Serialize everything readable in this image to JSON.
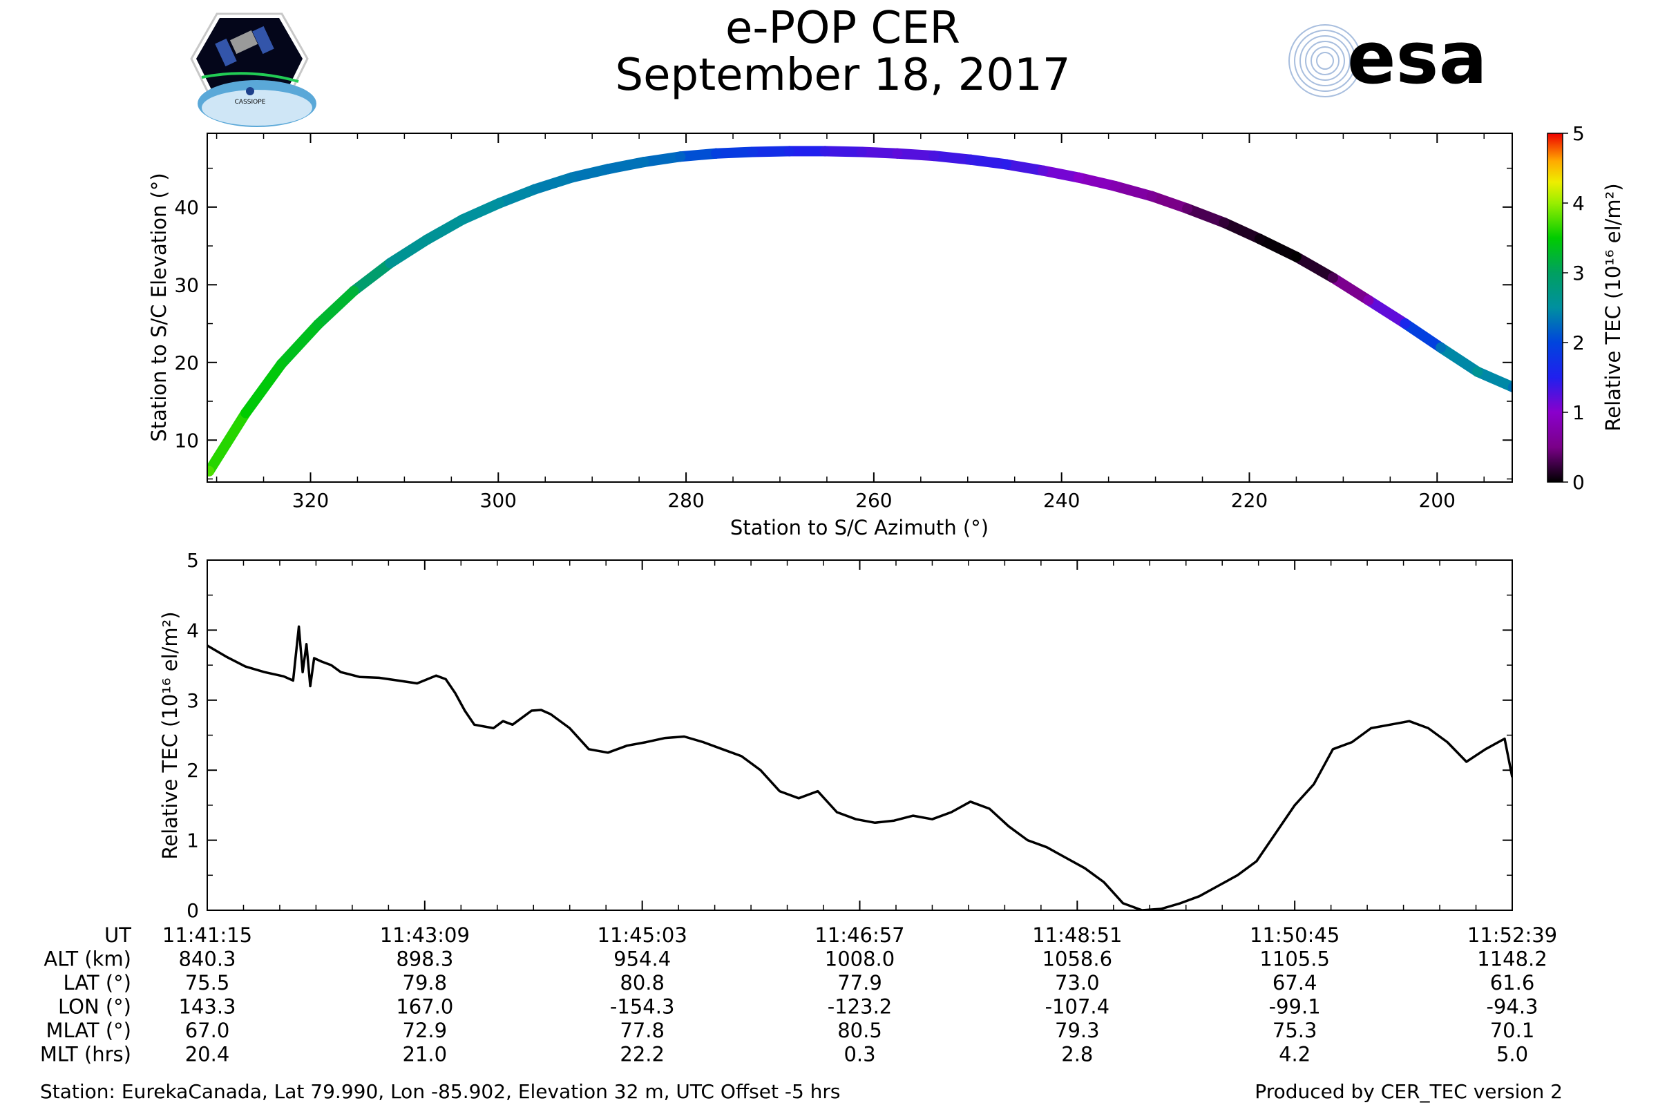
{
  "header": {
    "title": "e-POP CER",
    "date": "September 18, 2017",
    "logo_left_text": "CASSIOPE",
    "logo_right_text": "esa"
  },
  "colors": {
    "axis": "#000000",
    "trace": "#000000",
    "esa_blue": "#003399"
  },
  "chart_data": [
    {
      "type": "scatter",
      "title": "",
      "xlabel": "Station to S/C Azimuth (°)",
      "ylabel": "Station to S/C Elevation (°)",
      "xlim": [
        331,
        192
      ],
      "ylim": [
        4.6,
        49.5
      ],
      "xticks": [
        320,
        300,
        280,
        260,
        240,
        220,
        200
      ],
      "yticks": [
        10,
        20,
        30,
        40
      ],
      "x": [
        330.8,
        326.9,
        323.1,
        319.2,
        315.4,
        311.5,
        307.6,
        303.8,
        299.9,
        296.1,
        292.2,
        288.3,
        284.5,
        280.6,
        276.8,
        272.9,
        269.0,
        265.2,
        261.3,
        257.5,
        253.6,
        249.7,
        245.9,
        242.0,
        238.2,
        234.3,
        230.4,
        226.6,
        222.7,
        218.9,
        215.0,
        211.1,
        207.3,
        203.4,
        199.6,
        195.7,
        191.9
      ],
      "y": [
        6.0,
        13.5,
        19.8,
        24.9,
        29.2,
        32.8,
        35.8,
        38.4,
        40.5,
        42.3,
        43.8,
        44.9,
        45.8,
        46.5,
        46.9,
        47.1,
        47.2,
        47.2,
        47.1,
        46.9,
        46.6,
        46.1,
        45.5,
        44.7,
        43.8,
        42.7,
        41.4,
        39.8,
        38.0,
        35.9,
        33.6,
        30.9,
        28.0,
        25.0,
        21.9,
        18.8,
        16.8
      ],
      "color_values": [
        3.75,
        3.5,
        3.4,
        3.3,
        3.2,
        2.6,
        2.6,
        2.55,
        2.5,
        2.4,
        2.35,
        2.3,
        2.3,
        2.2,
        1.95,
        1.8,
        1.6,
        1.4,
        1.3,
        1.2,
        1.3,
        1.4,
        1.45,
        1.2,
        1.0,
        0.8,
        0.6,
        0.4,
        0.2,
        0.05,
        0.0,
        0.3,
        0.8,
        1.6,
        2.3,
        2.6,
        2.3
      ],
      "colorbar": {
        "label": "Relative TEC (10¹⁶ el/m²)",
        "range": [
          0,
          5
        ],
        "ticks": [
          0,
          1,
          2,
          3,
          4,
          5
        ],
        "colormap": "nipy_spectral"
      }
    },
    {
      "type": "line",
      "title": "",
      "xlabel": "",
      "ylabel": "Relative TEC (10¹⁶ el/m²)",
      "x_unit": "seconds since 11:41:15 UT",
      "xlim": [
        0,
        684
      ],
      "ylim": [
        0,
        5
      ],
      "yticks": [
        0,
        1,
        2,
        3,
        4,
        5
      ],
      "x": [
        0,
        10,
        20,
        30,
        40,
        45,
        48,
        50,
        52,
        54,
        56,
        60,
        65,
        70,
        80,
        90,
        100,
        110,
        120,
        125,
        130,
        135,
        140,
        150,
        155,
        160,
        170,
        175,
        180,
        190,
        200,
        210,
        220,
        230,
        240,
        250,
        260,
        270,
        280,
        290,
        300,
        310,
        320,
        330,
        340,
        350,
        360,
        370,
        380,
        390,
        400,
        410,
        420,
        430,
        440,
        450,
        460,
        470,
        480,
        490,
        500,
        510,
        520,
        530,
        540,
        550,
        560,
        570,
        580,
        590,
        600,
        610,
        620,
        630,
        640,
        650,
        660,
        670,
        680,
        684
      ],
      "y": [
        3.78,
        3.62,
        3.48,
        3.4,
        3.34,
        3.28,
        4.05,
        3.4,
        3.8,
        3.2,
        3.6,
        3.55,
        3.5,
        3.4,
        3.33,
        3.32,
        3.28,
        3.24,
        3.35,
        3.3,
        3.1,
        2.85,
        2.65,
        2.6,
        2.7,
        2.65,
        2.85,
        2.86,
        2.8,
        2.6,
        2.3,
        2.25,
        2.35,
        2.4,
        2.46,
        2.48,
        2.4,
        2.3,
        2.2,
        2.0,
        1.7,
        1.6,
        1.7,
        1.4,
        1.3,
        1.25,
        1.28,
        1.35,
        1.3,
        1.4,
        1.55,
        1.45,
        1.2,
        1.0,
        0.9,
        0.75,
        0.6,
        0.4,
        0.1,
        0.0,
        0.02,
        0.1,
        0.2,
        0.35,
        0.5,
        0.7,
        1.1,
        1.5,
        1.8,
        2.3,
        2.4,
        2.6,
        2.65,
        2.7,
        2.6,
        2.4,
        2.12,
        2.3,
        2.45,
        1.9
      ]
    }
  ],
  "table": {
    "rows": [
      {
        "label": "UT",
        "values": [
          "11:41:15",
          "11:43:09",
          "11:45:03",
          "11:46:57",
          "11:48:51",
          "11:50:45",
          "11:52:39"
        ]
      },
      {
        "label": "ALT (km)",
        "values": [
          "840.3",
          "898.3",
          "954.4",
          "1008.0",
          "1058.6",
          "1105.5",
          "1148.2"
        ]
      },
      {
        "label": "LAT (°)",
        "values": [
          "75.5",
          "79.8",
          "80.8",
          "77.9",
          "73.0",
          "67.4",
          "61.6"
        ]
      },
      {
        "label": "LON (°)",
        "values": [
          "143.3",
          "167.0",
          "-154.3",
          "-123.2",
          "-107.4",
          "-99.1",
          "-94.3"
        ]
      },
      {
        "label": "MLAT (°)",
        "values": [
          "67.0",
          "72.9",
          "77.8",
          "80.5",
          "79.3",
          "75.3",
          "70.1"
        ]
      },
      {
        "label": "MLT (hrs)",
        "values": [
          "20.4",
          "21.0",
          "22.2",
          "0.3",
          "2.8",
          "4.2",
          "5.0"
        ]
      }
    ]
  },
  "footer": {
    "station": "Station: EurekaCanada, Lat 79.990, Lon -85.902, Elevation 32 m, UTC Offset -5 hrs",
    "produced": "Produced by CER_TEC version 2"
  }
}
